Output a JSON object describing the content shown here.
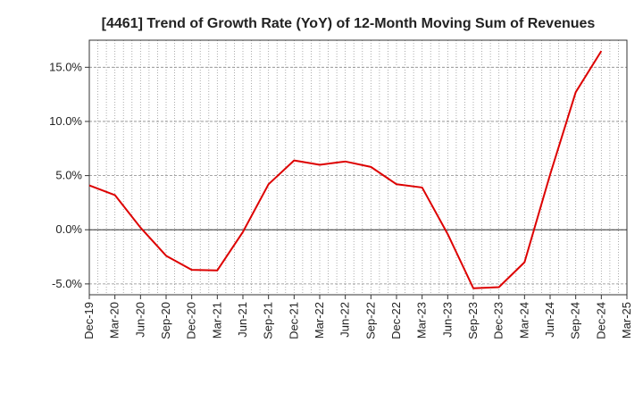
{
  "chart_data": {
    "type": "line",
    "title": "[4461]  Trend of Growth Rate (YoY) of 12-Month Moving Sum of Revenues",
    "xlabel": "",
    "ylabel": "",
    "x_ticks": [
      "Dec-19",
      "Mar-20",
      "Jun-20",
      "Sep-20",
      "Dec-20",
      "Mar-21",
      "Jun-21",
      "Sep-21",
      "Dec-21",
      "Mar-22",
      "Jun-22",
      "Sep-22",
      "Dec-22",
      "Mar-23",
      "Jun-23",
      "Sep-23",
      "Dec-23",
      "Mar-24",
      "Jun-24",
      "Sep-24",
      "Dec-24",
      "Mar-25"
    ],
    "y_ticks": [
      "-5.0%",
      "0.0%",
      "5.0%",
      "10.0%",
      "15.0%"
    ],
    "ylim": [
      -6.0,
      17.5
    ],
    "grid": true,
    "legend": "none",
    "series": [
      {
        "color": "#dd0000",
        "values": [
          4.1,
          3.2,
          0.2,
          -2.4,
          -3.7,
          -3.75,
          -0.2,
          4.2,
          6.4,
          6.0,
          6.3,
          5.8,
          4.2,
          3.9,
          -0.4,
          -5.4,
          -5.3,
          -3.0,
          5.1,
          12.7,
          16.5
        ]
      }
    ]
  }
}
